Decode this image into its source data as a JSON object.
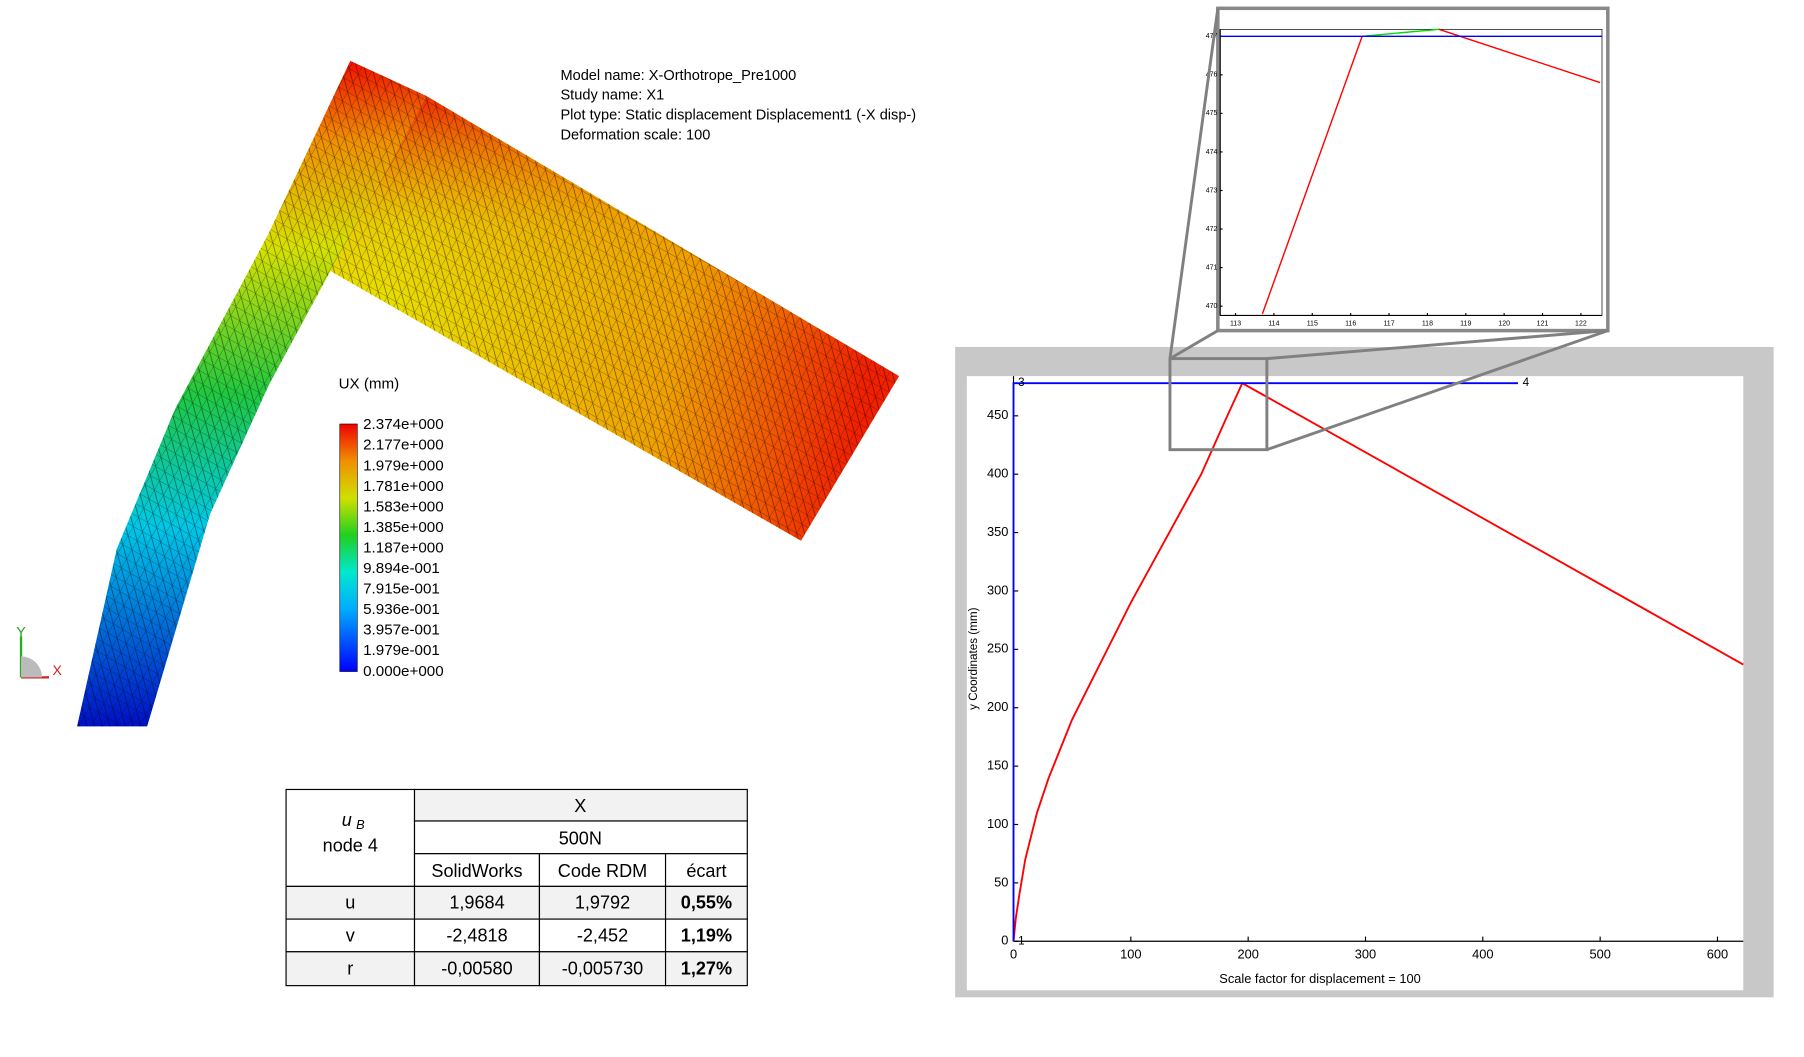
{
  "fea": {
    "info": [
      "Model name: X-Orthotrope_Pre1000",
      "Study name: X1",
      "Plot type: Static displacement Displacement1 (-X disp-)",
      "Deformation scale: 100"
    ],
    "legend_title": "UX (mm)",
    "legend_labels": [
      "2.374e+000",
      "2.177e+000",
      "1.979e+000",
      "1.781e+000",
      "1.583e+000",
      "1.385e+000",
      "1.187e+000",
      "9.894e-001",
      "7.915e-001",
      "5.936e-001",
      "3.957e-001",
      "1.979e-001",
      "0.000e+000"
    ],
    "axes": [
      "Y",
      "X"
    ]
  },
  "table": {
    "corner": {
      "symbol": "u",
      "subscript": "B",
      "node": "node 4"
    },
    "group": "X",
    "load": "500N",
    "columns": [
      "SolidWorks",
      "Code RDM",
      "écart"
    ],
    "rows": [
      [
        "u",
        "1,9684",
        "1,9792",
        "0,55%"
      ],
      [
        "v",
        "-2,4818",
        "-2,452",
        "1,19%"
      ],
      [
        "r",
        "-0,00580",
        "-0,005730",
        "1,27%"
      ]
    ]
  },
  "chart_data": [
    {
      "type": "line",
      "xlabel": "Scale factor for displacement = 100",
      "ylabel": "y Coordinates (mm)",
      "xlim": [
        0,
        622
      ],
      "ylim": [
        0,
        484
      ],
      "xticks": [
        0,
        100,
        200,
        300,
        400,
        500,
        600
      ],
      "yticks": [
        0,
        50,
        100,
        150,
        200,
        250,
        300,
        350,
        400,
        450
      ],
      "series": [
        {
          "color": "#ff0000",
          "x": [
            0,
            2,
            5,
            10,
            20,
            30,
            40,
            50,
            70,
            100,
            130,
            160,
            180,
            195,
            622
          ],
          "values": [
            0,
            20,
            40,
            70,
            110,
            140,
            165,
            190,
            230,
            290,
            345,
            400,
            445,
            478,
            237
          ]
        },
        {
          "color": "#0000ff",
          "x": [
            0,
            0,
            430
          ],
          "values": [
            0,
            478,
            478
          ]
        }
      ],
      "annotations": [
        {
          "text": "1",
          "x": 0,
          "y": 0
        },
        {
          "text": "3",
          "x": 0,
          "y": 478
        },
        {
          "text": "4",
          "x": 430,
          "y": 478
        }
      ]
    },
    {
      "type": "line",
      "xlim": [
        112.6,
        122.55
      ],
      "ylim": [
        469.76,
        477.18
      ],
      "xticks": [
        113,
        114,
        115,
        116,
        117,
        118,
        119,
        120,
        121,
        122
      ],
      "yticks": [
        470,
        471,
        472,
        473,
        474,
        475,
        476,
        477
      ],
      "series": [
        {
          "color": "#ff0000",
          "x": [
            113.7,
            116.3
          ],
          "values": [
            469.8,
            477.0
          ]
        },
        {
          "color": "#00dd00",
          "x": [
            116.3,
            118.3
          ],
          "values": [
            477.0,
            477.18
          ]
        },
        {
          "color": "#ff0000",
          "x": [
            118.3,
            122.5
          ],
          "values": [
            477.18,
            475.8
          ]
        },
        {
          "color": "#0000ff",
          "x": [
            112.6,
            122.55
          ],
          "values": [
            477.0,
            477.0
          ]
        }
      ]
    }
  ]
}
